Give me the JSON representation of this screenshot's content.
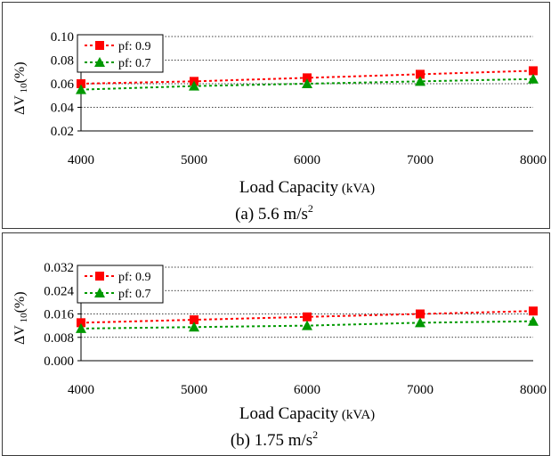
{
  "colors": {
    "pf09": "#ff0000",
    "pf07": "#009900",
    "grid": "#000000"
  },
  "chart_data": [
    {
      "type": "line",
      "ylabel_main": "ΔV",
      "ylabel_sub": "10",
      "ylabel_unit": "(%)",
      "xlabel_main": "Load Capacity",
      "xlabel_unit": " (kVA)",
      "caption_text": "(a) 5.6 m/s",
      "caption_sup": "2",
      "x": [
        4000,
        5000,
        6000,
        7000,
        8000
      ],
      "xlim": [
        4000,
        8000
      ],
      "ylim": [
        0.02,
        0.1
      ],
      "yticks": [
        "0.02",
        "0.04",
        "0.06",
        "0.08",
        "0.10"
      ],
      "yticks_values": [
        0.02,
        0.04,
        0.06,
        0.08,
        0.1
      ],
      "grid": "horizontal-dotted",
      "legend_position": "top-left",
      "series": [
        {
          "name": "pf: 0.9",
          "marker": "square",
          "values": [
            0.06,
            0.062,
            0.065,
            0.068,
            0.071
          ]
        },
        {
          "name": "pf: 0.7",
          "marker": "triangle",
          "values": [
            0.055,
            0.058,
            0.06,
            0.062,
            0.064
          ]
        }
      ]
    },
    {
      "type": "line",
      "ylabel_main": "ΔV",
      "ylabel_sub": "10",
      "ylabel_unit": "(%)",
      "xlabel_main": "Load Capacity",
      "xlabel_unit": " (kVA)",
      "caption_text": "(b) 1.75 m/s",
      "caption_sup": "2",
      "x": [
        4000,
        5000,
        6000,
        7000,
        8000
      ],
      "xlim": [
        4000,
        8000
      ],
      "ylim": [
        0.0,
        0.032
      ],
      "yticks": [
        "0.000",
        "0.008",
        "0.016",
        "0.024",
        "0.032"
      ],
      "yticks_values": [
        0.0,
        0.008,
        0.016,
        0.024,
        0.032
      ],
      "grid": "horizontal-dotted",
      "legend_position": "top-left",
      "series": [
        {
          "name": "pf: 0.9",
          "marker": "square",
          "values": [
            0.013,
            0.014,
            0.015,
            0.016,
            0.017
          ]
        },
        {
          "name": "pf: 0.7",
          "marker": "triangle",
          "values": [
            0.011,
            0.0115,
            0.012,
            0.013,
            0.0135
          ]
        }
      ]
    }
  ]
}
